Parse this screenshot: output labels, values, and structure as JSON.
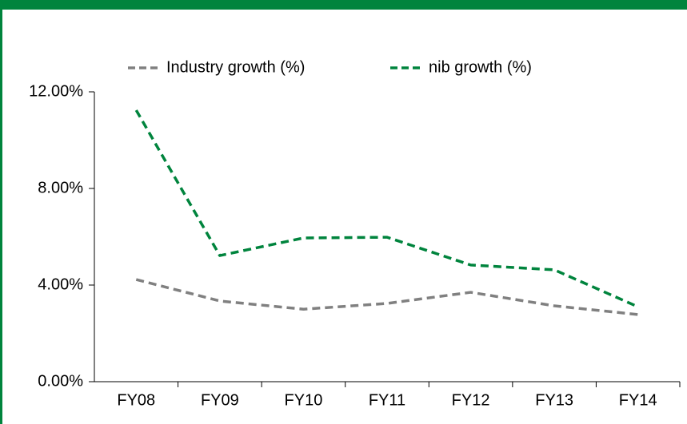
{
  "chart_data": {
    "type": "line",
    "categories": [
      "FY08",
      "FY09",
      "FY10",
      "FY11",
      "FY12",
      "FY13",
      "FY14"
    ],
    "series": [
      {
        "name": "Industry growth (%)",
        "color": "#808080",
        "values": [
          4.23,
          3.34,
          3.0,
          3.24,
          3.7,
          3.14,
          2.78
        ]
      },
      {
        "name": "nib growth (%)",
        "color": "#00843d",
        "values": [
          11.24,
          5.22,
          5.95,
          5.98,
          4.83,
          4.63,
          3.1
        ]
      }
    ],
    "ylim": [
      0,
      12
    ],
    "yticks": [
      {
        "value": 0,
        "label": "0.00%"
      },
      {
        "value": 4,
        "label": "4.00%"
      },
      {
        "value": 8,
        "label": "8.00%"
      },
      {
        "value": 12,
        "label": "12.00%"
      }
    ],
    "grid": false,
    "legend": "top",
    "line_style": "dashed"
  }
}
